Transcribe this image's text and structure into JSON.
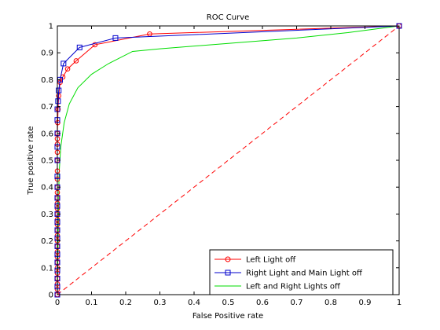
{
  "chart_data": {
    "type": "line",
    "title": "ROC Curve",
    "xlabel": "False Positive rate",
    "ylabel": "True positive rate",
    "xlim": [
      0,
      1
    ],
    "ylim": [
      0,
      1
    ],
    "xticks": [
      "0",
      "0.1",
      "0.2",
      "0.3",
      "0.4",
      "0.5",
      "0.6",
      "0.7",
      "0.8",
      "0.9",
      "1"
    ],
    "yticks": [
      "0",
      "0.1",
      "0.2",
      "0.3",
      "0.4",
      "0.5",
      "0.6",
      "0.7",
      "0.8",
      "0.9",
      "1"
    ],
    "grid": false,
    "legend_position": "bottom-right",
    "series": [
      {
        "name": "Left Light off",
        "color": "#ff0000",
        "marker": "circle",
        "line": "solid",
        "x": [
          0,
          0,
          0,
          0,
          0,
          0,
          0,
          0,
          0,
          0,
          0,
          0,
          0,
          0,
          0,
          0,
          0,
          0,
          0,
          0,
          0,
          0,
          0,
          0,
          0,
          0,
          0,
          0,
          0.001,
          0.002,
          0.004,
          0.008,
          0.016,
          0.03,
          0.055,
          0.11,
          0.27,
          1.0
        ],
        "y": [
          0,
          0.02,
          0.04,
          0.06,
          0.08,
          0.1,
          0.12,
          0.14,
          0.16,
          0.18,
          0.2,
          0.22,
          0.24,
          0.26,
          0.28,
          0.3,
          0.32,
          0.34,
          0.36,
          0.38,
          0.4,
          0.43,
          0.46,
          0.5,
          0.53,
          0.56,
          0.58,
          0.6,
          0.64,
          0.69,
          0.74,
          0.79,
          0.81,
          0.84,
          0.87,
          0.93,
          0.97,
          1.0
        ]
      },
      {
        "name": "Right Light and Main Light off",
        "color": "#0000cc",
        "marker": "square",
        "line": "solid",
        "x": [
          0,
          0,
          0,
          0,
          0,
          0,
          0,
          0,
          0,
          0,
          0,
          0,
          0,
          0,
          0,
          0,
          0,
          0,
          0,
          0,
          0.002,
          0.004,
          0.008,
          0.018,
          0.065,
          0.17,
          1.0
        ],
        "y": [
          0,
          0.03,
          0.06,
          0.09,
          0.12,
          0.15,
          0.18,
          0.21,
          0.24,
          0.27,
          0.3,
          0.33,
          0.36,
          0.4,
          0.44,
          0.5,
          0.55,
          0.6,
          0.65,
          0.69,
          0.72,
          0.76,
          0.8,
          0.86,
          0.92,
          0.955,
          1.0
        ]
      },
      {
        "name": "Left and Right Lights off",
        "color": "#00dd00",
        "marker": "none",
        "line": "solid",
        "x": [
          0,
          0.005,
          0.01,
          0.02,
          0.035,
          0.06,
          0.1,
          0.15,
          0.22,
          0.3,
          0.5,
          0.7,
          0.85,
          1.0
        ],
        "y": [
          0,
          0.45,
          0.55,
          0.64,
          0.71,
          0.77,
          0.82,
          0.86,
          0.905,
          0.915,
          0.935,
          0.955,
          0.975,
          1.0
        ]
      },
      {
        "name": "",
        "color": "#ff0000",
        "marker": "none",
        "line": "dashed",
        "x": [
          0,
          1
        ],
        "y": [
          0,
          1
        ]
      }
    ]
  }
}
